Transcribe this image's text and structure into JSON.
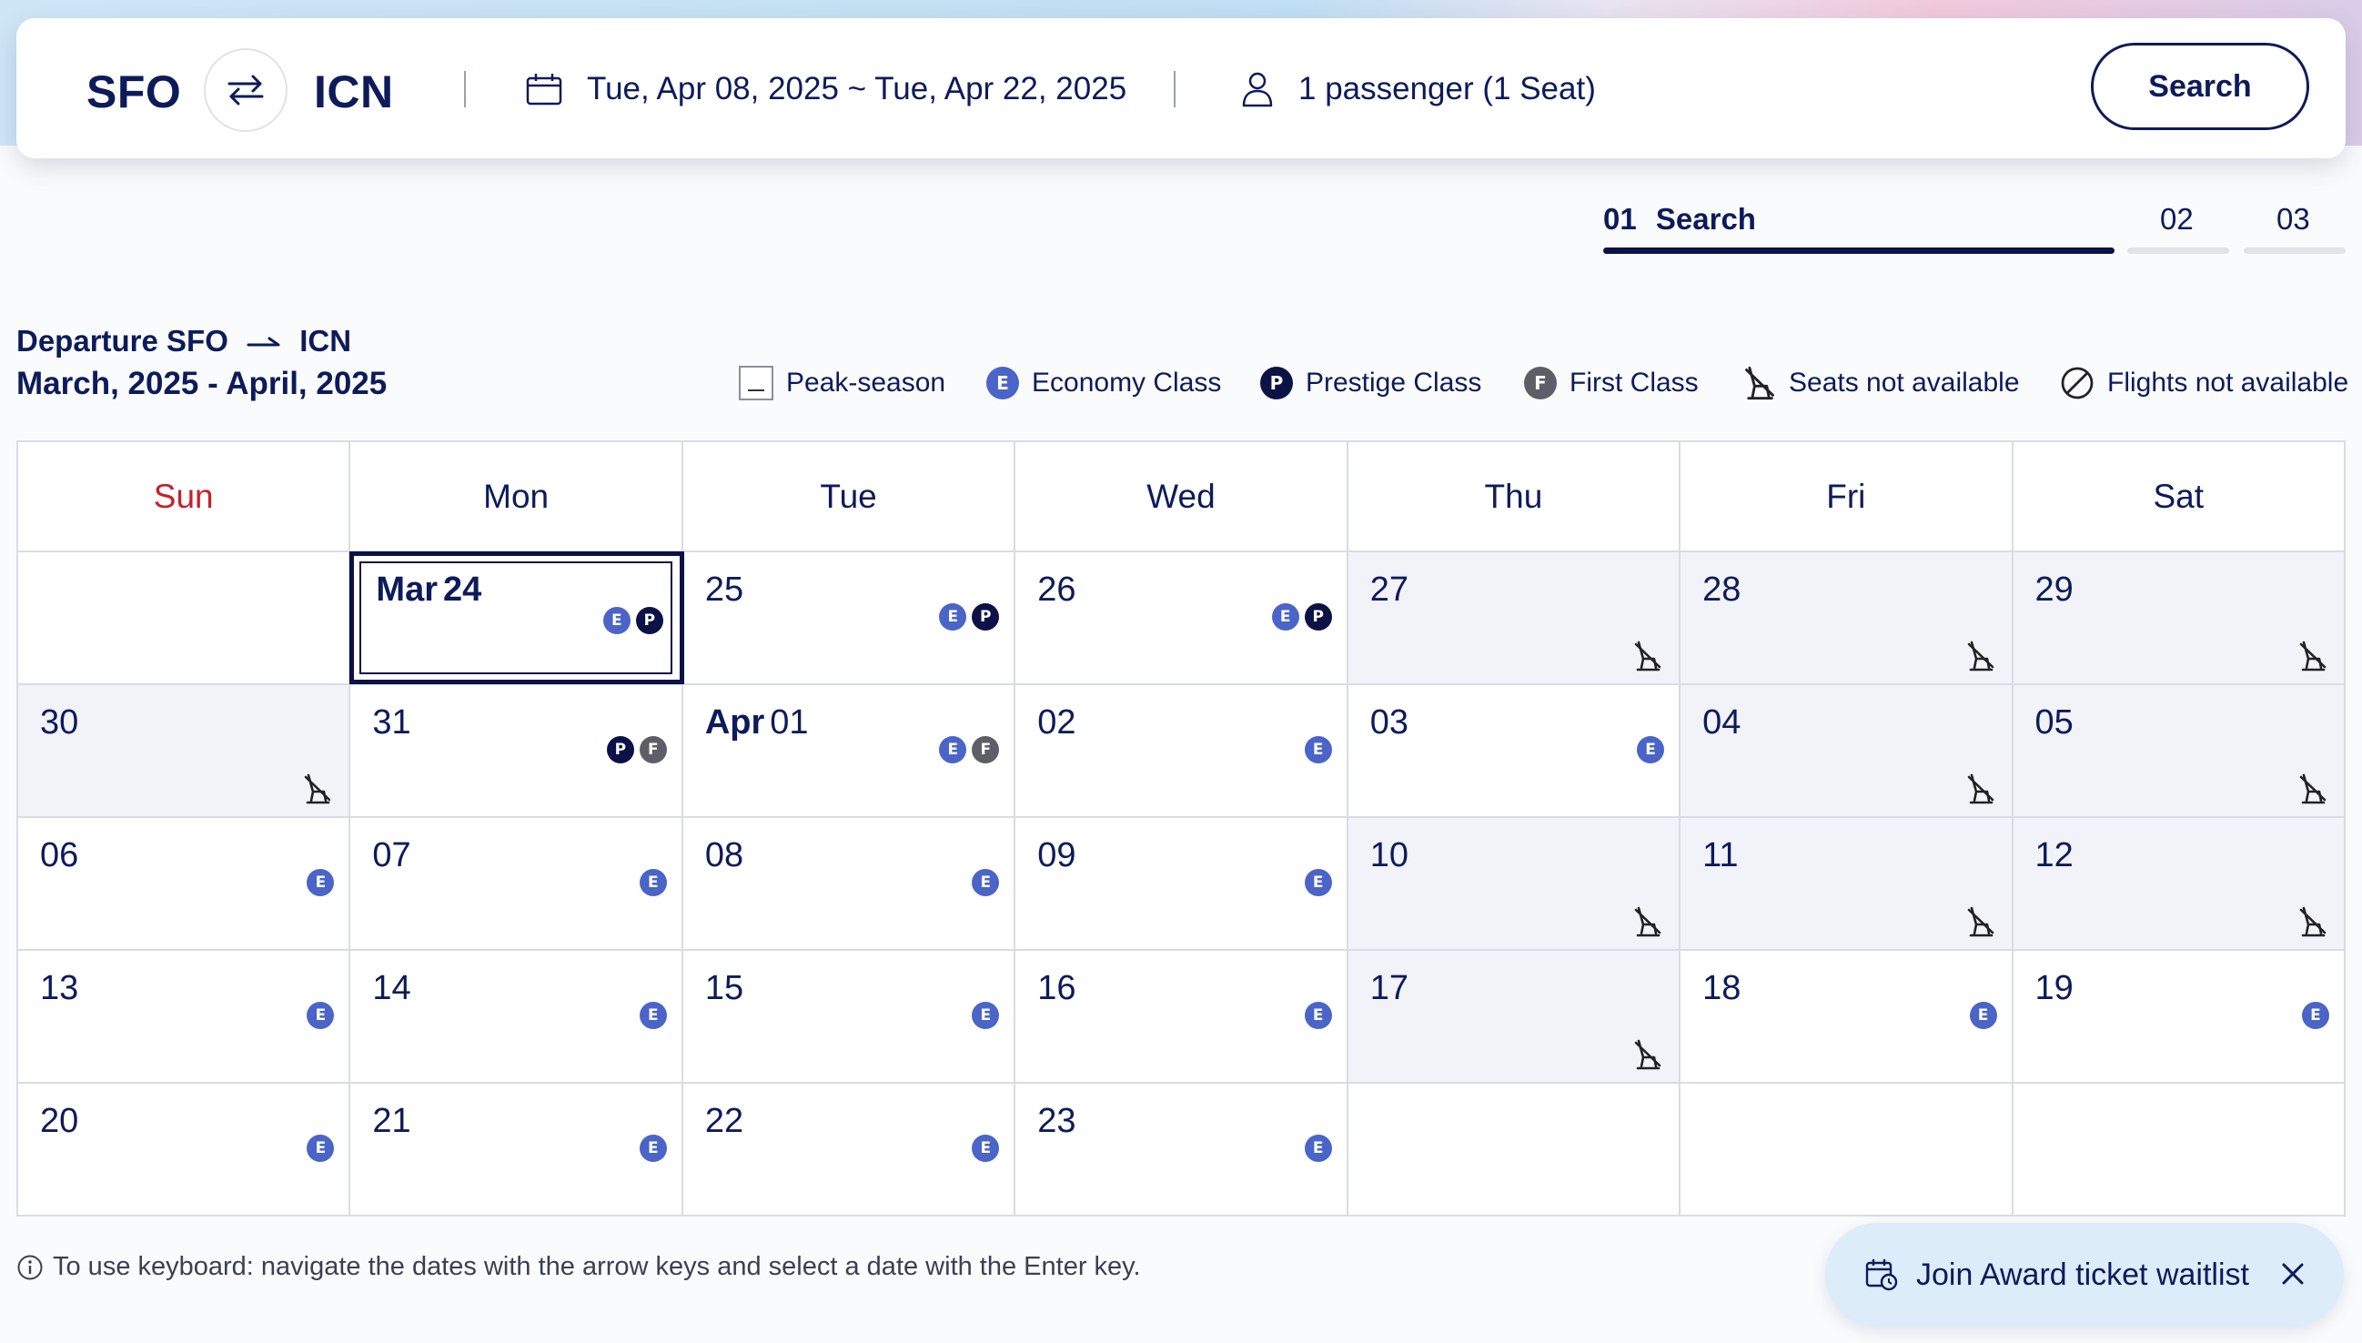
{
  "search": {
    "origin": "SFO",
    "destination": "ICN",
    "dates": "Tue, Apr 08, 2025 ~ Tue, Apr 22, 2025",
    "passengers": "1 passenger (1 Seat)",
    "button_label": "Search"
  },
  "steps": [
    {
      "num": "01",
      "label": "Search",
      "active": true
    },
    {
      "num": "02",
      "label": "",
      "active": false
    },
    {
      "num": "03",
      "label": "",
      "active": false
    }
  ],
  "calendar_header": {
    "departure_label": "Departure SFO",
    "departure_dest": "ICN",
    "range": "March, 2025 - April, 2025"
  },
  "legend": {
    "peak": "Peak-season",
    "economy": "Economy Class",
    "prestige": "Prestige Class",
    "first": "First Class",
    "no_seats": "Seats not available",
    "no_flights": "Flights not available",
    "badge_E": "E",
    "badge_P": "P",
    "badge_F": "F"
  },
  "weekdays": [
    "Sun",
    "Mon",
    "Tue",
    "Wed",
    "Thu",
    "Fri",
    "Sat"
  ],
  "weeks": [
    [
      {
        "day": "",
        "month": "",
        "peak": false,
        "classes": [],
        "no_seats": false
      },
      {
        "day": "24",
        "month": "Mar",
        "peak": false,
        "classes": [
          "E",
          "P"
        ],
        "no_seats": false,
        "selected": true
      },
      {
        "day": "25",
        "month": "",
        "peak": false,
        "classes": [
          "E",
          "P"
        ],
        "no_seats": false
      },
      {
        "day": "26",
        "month": "",
        "peak": false,
        "classes": [
          "E",
          "P"
        ],
        "no_seats": false
      },
      {
        "day": "27",
        "month": "",
        "peak": true,
        "classes": [],
        "no_seats": true
      },
      {
        "day": "28",
        "month": "",
        "peak": true,
        "classes": [],
        "no_seats": true
      },
      {
        "day": "29",
        "month": "",
        "peak": true,
        "classes": [],
        "no_seats": true
      }
    ],
    [
      {
        "day": "30",
        "month": "",
        "peak": true,
        "classes": [],
        "no_seats": true
      },
      {
        "day": "31",
        "month": "",
        "peak": false,
        "classes": [
          "P",
          "F"
        ],
        "no_seats": false
      },
      {
        "day": "01",
        "month": "Apr",
        "peak": false,
        "classes": [
          "E",
          "F"
        ],
        "no_seats": false
      },
      {
        "day": "02",
        "month": "",
        "peak": false,
        "classes": [
          "E"
        ],
        "no_seats": false
      },
      {
        "day": "03",
        "month": "",
        "peak": false,
        "classes": [
          "E"
        ],
        "no_seats": false
      },
      {
        "day": "04",
        "month": "",
        "peak": true,
        "classes": [],
        "no_seats": true
      },
      {
        "day": "05",
        "month": "",
        "peak": true,
        "classes": [],
        "no_seats": true
      }
    ],
    [
      {
        "day": "06",
        "month": "",
        "peak": false,
        "classes": [
          "E"
        ],
        "no_seats": false
      },
      {
        "day": "07",
        "month": "",
        "peak": false,
        "classes": [
          "E"
        ],
        "no_seats": false
      },
      {
        "day": "08",
        "month": "",
        "peak": false,
        "classes": [
          "E"
        ],
        "no_seats": false
      },
      {
        "day": "09",
        "month": "",
        "peak": false,
        "classes": [
          "E"
        ],
        "no_seats": false
      },
      {
        "day": "10",
        "month": "",
        "peak": true,
        "classes": [],
        "no_seats": true
      },
      {
        "day": "11",
        "month": "",
        "peak": true,
        "classes": [],
        "no_seats": true
      },
      {
        "day": "12",
        "month": "",
        "peak": true,
        "classes": [],
        "no_seats": true
      }
    ],
    [
      {
        "day": "13",
        "month": "",
        "peak": false,
        "classes": [
          "E"
        ],
        "no_seats": false
      },
      {
        "day": "14",
        "month": "",
        "peak": false,
        "classes": [
          "E"
        ],
        "no_seats": false
      },
      {
        "day": "15",
        "month": "",
        "peak": false,
        "classes": [
          "E"
        ],
        "no_seats": false
      },
      {
        "day": "16",
        "month": "",
        "peak": false,
        "classes": [
          "E"
        ],
        "no_seats": false
      },
      {
        "day": "17",
        "month": "",
        "peak": true,
        "classes": [],
        "no_seats": true
      },
      {
        "day": "18",
        "month": "",
        "peak": false,
        "classes": [
          "E"
        ],
        "no_seats": false
      },
      {
        "day": "19",
        "month": "",
        "peak": false,
        "classes": [
          "E"
        ],
        "no_seats": false
      }
    ],
    [
      {
        "day": "20",
        "month": "",
        "peak": false,
        "classes": [
          "E"
        ],
        "no_seats": false
      },
      {
        "day": "21",
        "month": "",
        "peak": false,
        "classes": [
          "E"
        ],
        "no_seats": false
      },
      {
        "day": "22",
        "month": "",
        "peak": false,
        "classes": [
          "E"
        ],
        "no_seats": false
      },
      {
        "day": "23",
        "month": "",
        "peak": false,
        "classes": [
          "E"
        ],
        "no_seats": false
      },
      {
        "day": "",
        "month": "",
        "peak": false,
        "classes": [],
        "no_seats": false
      },
      {
        "day": "",
        "month": "",
        "peak": false,
        "classes": [],
        "no_seats": false
      },
      {
        "day": "",
        "month": "",
        "peak": false,
        "classes": [],
        "no_seats": false
      }
    ]
  ],
  "keyboard_hint": "To use keyboard: navigate the dates with the arrow keys and select a date with the Enter key.",
  "waitlist": {
    "label": "Join Award ticket waitlist"
  },
  "colors": {
    "navy": "#0d1b5a",
    "economy": "#4a64c8",
    "prestige": "#0c1246",
    "first": "#5e5e66",
    "sunday": "#c6202b",
    "peak_bg": "#f1f3f8"
  }
}
